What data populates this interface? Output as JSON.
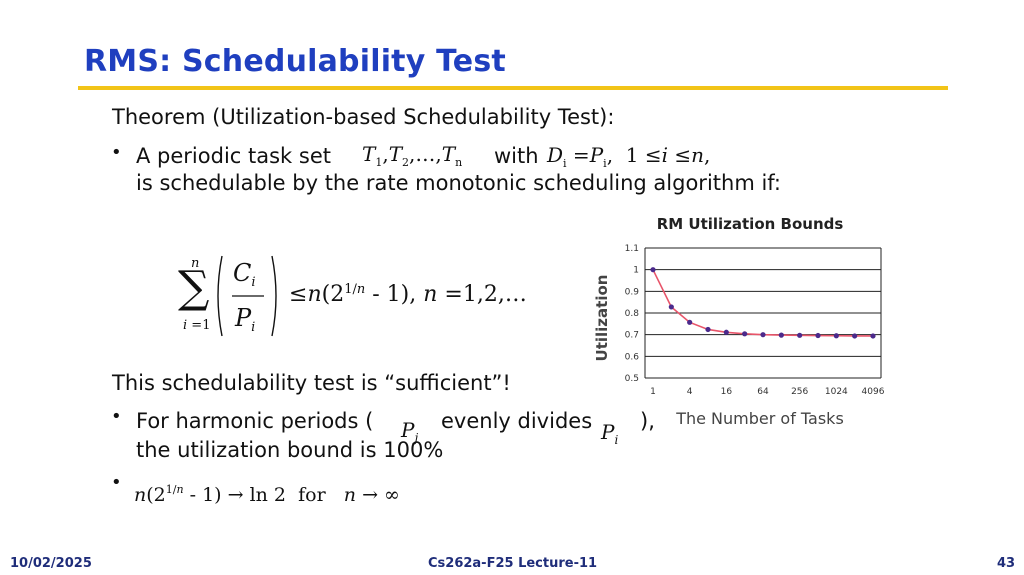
{
  "slide": {
    "title": "RMS: Schedulability Test",
    "theorem": "Theorem (Utilization-based Schedulability Test):",
    "bullet1_a": "A periodic task set",
    "bullet1_with": "with",
    "bullet1_b": "is schedulable by the rate monotonic scheduling algorithm if:",
    "sufficient": "This schedulability test is “sufficient”!",
    "harmonic_a": "For harmonic periods (",
    "harmonic_mid": "evenly divides",
    "harmonic_end": "),",
    "harmonic_b": "the utilization bound is 100%",
    "bullet_symbol": "•"
  },
  "math": {
    "task_set": "T1, T2, …, Tn",
    "deadline_cond": "Di = Pi,  1 ≤ i ≤ n,",
    "sum_upper": "n",
    "sum_lower": "i =1",
    "frac_num": "C",
    "frac_den": "P",
    "bound": "≤ n(2^{1/n} − 1),  n = 1,2,…",
    "Pj": "P",
    "Pj_sub": "j",
    "Pi": "P",
    "Pi_sub": "i",
    "limit": "n(2^{1/n} − 1) → ln 2  for  n → ∞"
  },
  "footer": {
    "date": "10/02/2025",
    "course": "Cs262a-F25 Lecture-11",
    "page": "43"
  },
  "chart_data": {
    "type": "line",
    "title": "RM Utilization Bounds",
    "xlabel": "The Number of Tasks",
    "ylabel": "Utilization",
    "x_ticks": [
      "1",
      "4",
      "16",
      "64",
      "256",
      "1024",
      "4096"
    ],
    "x": [
      1,
      2,
      4,
      8,
      16,
      32,
      64,
      128,
      256,
      512,
      1024,
      2048,
      4096
    ],
    "values": [
      1.0,
      0.828,
      0.757,
      0.724,
      0.711,
      0.704,
      0.7,
      0.698,
      0.697,
      0.696,
      0.695,
      0.694,
      0.694
    ],
    "y_ticks": [
      "0.5",
      "0.6",
      "0.7",
      "0.8",
      "0.9",
      "1",
      "1.1"
    ],
    "ylim": [
      0.5,
      1.1
    ],
    "x_scale": "log2",
    "grid": true,
    "line_color": "#e8556a",
    "marker_color": "#4b2a8c"
  }
}
